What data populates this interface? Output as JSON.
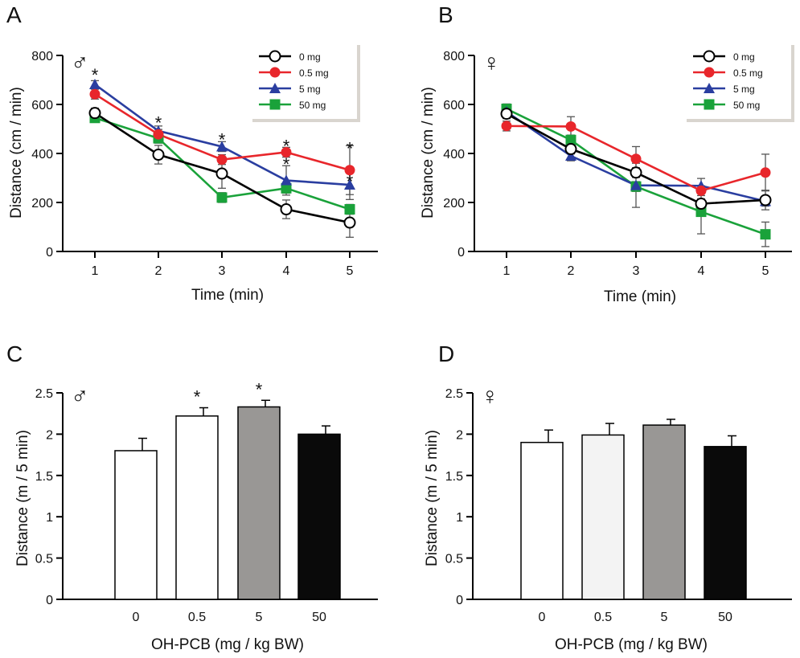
{
  "chart_data": [
    {
      "panel": "A",
      "sex_symbol": "♂",
      "type": "line",
      "xlabel": "Time  (min)",
      "ylabel": "Distance  (cm / min)",
      "x": [
        1,
        2,
        3,
        4,
        5
      ],
      "xticks": [
        "1",
        "2",
        "3",
        "4",
        "5"
      ],
      "ylim": [
        0,
        800
      ],
      "yticks": [
        "0",
        "200",
        "400",
        "600",
        "800"
      ],
      "legend_position": "top-right",
      "series": [
        {
          "name": "0    mg",
          "color": "#000000",
          "marker": "open-circle",
          "values": [
            565,
            395,
            318,
            172,
            118
          ],
          "errors": [
            20,
            38,
            60,
            38,
            60
          ]
        },
        {
          "name": "0.5 mg",
          "color": "#e8262b",
          "marker": "circle",
          "values": [
            642,
            478,
            375,
            405,
            332
          ],
          "errors": [
            20,
            20,
            20,
            20,
            100
          ]
        },
        {
          "name": "5    mg",
          "color": "#2a3ea0",
          "marker": "triangle",
          "values": [
            682,
            492,
            428,
            290,
            272
          ],
          "errors": [
            15,
            20,
            20,
            60,
            60
          ]
        },
        {
          "name": "50  mg",
          "color": "#1aa23a",
          "marker": "square",
          "values": [
            545,
            462,
            220,
            258,
            172
          ],
          "errors": [
            15,
            20,
            20,
            20,
            20
          ]
        }
      ],
      "significance": [
        {
          "x": 1,
          "y": 735,
          "label": "*"
        },
        {
          "x": 2,
          "y": 540,
          "label": "*"
        },
        {
          "x": 3,
          "y": 470,
          "label": "*"
        },
        {
          "x": 4,
          "y": 445,
          "label": "*"
        },
        {
          "x": 4,
          "y": 370,
          "label": "*"
        },
        {
          "x": 5,
          "y": 435,
          "label": "*"
        },
        {
          "x": 5,
          "y": 300,
          "label": "*"
        }
      ]
    },
    {
      "panel": "B",
      "sex_symbol": "♀",
      "type": "line",
      "xlabel": "Time  (min)",
      "ylabel": "Distance  (cm / min)",
      "x": [
        1,
        2,
        3,
        4,
        5
      ],
      "xticks": [
        "1",
        "2",
        "3",
        "4",
        "5"
      ],
      "ylim": [
        0,
        800
      ],
      "yticks": [
        "0",
        "200",
        "400",
        "600",
        "800"
      ],
      "legend_position": "top-right",
      "series": [
        {
          "name": "0    mg",
          "color": "#000000",
          "marker": "open-circle",
          "values": [
            562,
            418,
            322,
            195,
            210
          ],
          "errors": [
            20,
            20,
            20,
            20,
            40
          ]
        },
        {
          "name": "0.5 mg",
          "color": "#e8262b",
          "marker": "circle",
          "values": [
            512,
            510,
            378,
            248,
            322
          ],
          "errors": [
            20,
            40,
            50,
            20,
            75
          ]
        },
        {
          "name": "5    mg",
          "color": "#2a3ea0",
          "marker": "triangle",
          "values": [
            570,
            390,
            270,
            268,
            205
          ],
          "errors": [
            20,
            20,
            90,
            30,
            20
          ]
        },
        {
          "name": "50  mg",
          "color": "#1aa23a",
          "marker": "square",
          "values": [
            582,
            455,
            265,
            162,
            70
          ],
          "errors": [
            20,
            20,
            20,
            90,
            50
          ]
        }
      ],
      "significance": []
    },
    {
      "panel": "C",
      "sex_symbol": "♂",
      "type": "bar",
      "xlabel": "OH-PCB  (mg / kg BW)",
      "ylabel": "Distance  (m / 5 min)",
      "categories": [
        "0",
        "0.5",
        "5",
        "50"
      ],
      "values": [
        1.8,
        2.22,
        2.33,
        2.0
      ],
      "errors": [
        0.15,
        0.1,
        0.08,
        0.1
      ],
      "bar_colors": [
        "#ffffff",
        "#ffffff",
        "#999795",
        "#0a0a0a"
      ],
      "ylim": [
        0,
        2.5
      ],
      "yticks": [
        "0",
        "0.5",
        "1",
        "1.5",
        "2",
        "2.5"
      ],
      "significance": [
        {
          "index": 1,
          "label": "*"
        },
        {
          "index": 2,
          "label": "*"
        }
      ]
    },
    {
      "panel": "D",
      "sex_symbol": "♀",
      "type": "bar",
      "xlabel": "OH-PCB  (mg / kg BW)",
      "ylabel": "Distance  (m / 5 min)",
      "categories": [
        "0",
        "0.5",
        "5",
        "50"
      ],
      "values": [
        1.9,
        1.99,
        2.11,
        1.85
      ],
      "errors": [
        0.15,
        0.14,
        0.07,
        0.13
      ],
      "bar_colors": [
        "#ffffff",
        "#f3f3f3",
        "#999795",
        "#0a0a0a"
      ],
      "ylim": [
        0,
        2.5
      ],
      "yticks": [
        "0",
        "0.5",
        "1",
        "1.5",
        "2",
        "2.5"
      ],
      "significance": []
    }
  ]
}
